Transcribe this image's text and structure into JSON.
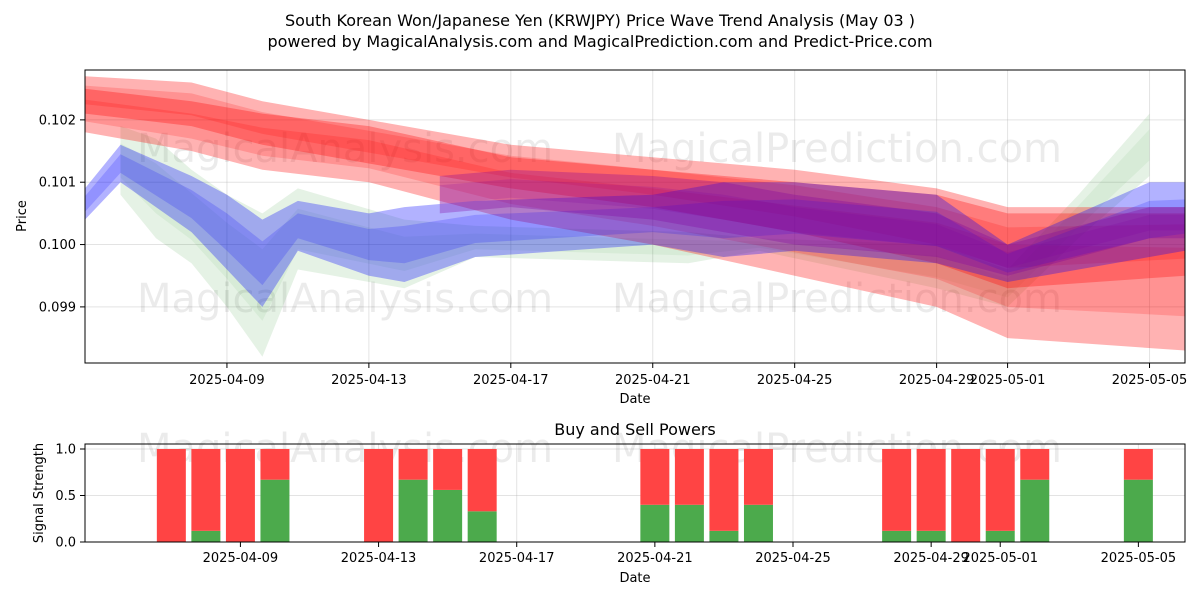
{
  "header": {
    "title_line1": "South Korean Won/Japanese Yen (KRWJPY) Price Wave Trend Analysis (May 03 )",
    "title_line2": "powered by MagicalAnalysis.com and MagicalPrediction.com and Predict-Price.com"
  },
  "watermarks": {
    "left": "MagicalAnalysis.com",
    "right": "MagicalPrediction.com"
  },
  "colors": {
    "red_band": "#ff0000",
    "blue_band": "#0000ff",
    "green_band": "#008000",
    "purple_band": "#8000a0",
    "buy": "#4caa4c",
    "sell": "#ff4444"
  },
  "chart_data": [
    {
      "type": "area",
      "title": "",
      "xlabel": "Date",
      "ylabel": "Price",
      "x_ticks": [
        "2025-04-09",
        "2025-04-13",
        "2025-04-17",
        "2025-04-21",
        "2025-04-25",
        "2025-04-29",
        "2025-05-01",
        "2025-05-05"
      ],
      "y_ticks": [
        "0.099",
        "0.100",
        "0.101",
        "0.102"
      ],
      "xlim": [
        "2025-04-05",
        "2025-05-06"
      ],
      "ylim": [
        0.0981,
        0.1028
      ],
      "grid": true,
      "series": [
        {
          "color": "red",
          "x": [
            "2025-04-05",
            "2025-04-08",
            "2025-04-10",
            "2025-04-13",
            "2025-04-17",
            "2025-04-21",
            "2025-04-25",
            "2025-04-29",
            "2025-05-01",
            "2025-05-06"
          ],
          "upper": [
            0.1025,
            0.1023,
            0.1021,
            0.1019,
            0.1014,
            0.1012,
            0.101,
            0.1008,
            0.1005,
            0.1005
          ],
          "lower": [
            0.1018,
            0.1015,
            0.1012,
            0.101,
            0.1004,
            0.1,
            0.0995,
            0.099,
            0.0985,
            0.0983
          ]
        },
        {
          "color": "red",
          "x": [
            "2025-04-05",
            "2025-04-08",
            "2025-04-10",
            "2025-04-13",
            "2025-04-17",
            "2025-04-21",
            "2025-04-25",
            "2025-04-29",
            "2025-05-01",
            "2025-05-06"
          ],
          "upper": [
            0.1027,
            0.1026,
            0.1023,
            0.102,
            0.1016,
            0.1014,
            0.1012,
            0.1009,
            0.1006,
            0.1006
          ],
          "lower": [
            0.1021,
            0.1019,
            0.1016,
            0.1013,
            0.1009,
            0.1006,
            0.1002,
            0.0997,
            0.0993,
            0.0995
          ]
        },
        {
          "color": "blue",
          "x": [
            "2025-04-05",
            "2025-04-06",
            "2025-04-08",
            "2025-04-09",
            "2025-04-10",
            "2025-04-11",
            "2025-04-13",
            "2025-04-14",
            "2025-04-16",
            "2025-04-21",
            "2025-04-23",
            "2025-04-25",
            "2025-04-29",
            "2025-05-01",
            "2025-05-05",
            "2025-05-06"
          ],
          "upper": [
            0.1009,
            0.1016,
            0.1011,
            0.1008,
            0.1004,
            0.1007,
            0.1005,
            0.1006,
            0.1007,
            0.1008,
            0.101,
            0.101,
            0.1008,
            0.1,
            0.101,
            0.101
          ],
          "lower": [
            0.1004,
            0.101,
            0.1002,
            0.0996,
            0.099,
            0.0999,
            0.0995,
            0.0994,
            0.0998,
            0.1,
            0.0998,
            0.0999,
            0.0997,
            0.0994,
            0.0998,
            0.0999
          ]
        },
        {
          "color": "green",
          "x": [
            "2025-04-06",
            "2025-04-07",
            "2025-04-08",
            "2025-04-09",
            "2025-04-10",
            "2025-04-11",
            "2025-04-14",
            "2025-04-16",
            "2025-04-22",
            "2025-04-24",
            "2025-04-29",
            "2025-05-01",
            "2025-05-03",
            "2025-05-05"
          ],
          "upper": [
            0.1019,
            0.1017,
            0.1012,
            0.1008,
            0.1005,
            0.1009,
            0.1004,
            0.1003,
            0.1002,
            0.1001,
            0.1,
            0.0996,
            0.1008,
            0.1021
          ],
          "lower": [
            0.1008,
            0.1001,
            0.0997,
            0.099,
            0.0982,
            0.0996,
            0.0993,
            0.0998,
            0.0997,
            0.0999,
            0.0993,
            0.099,
            0.1001,
            0.1011
          ]
        },
        {
          "color": "purple",
          "x": [
            "2025-04-15",
            "2025-04-17",
            "2025-04-21",
            "2025-04-23",
            "2025-04-25",
            "2025-04-29",
            "2025-05-01",
            "2025-05-05",
            "2025-05-06"
          ],
          "upper": [
            0.1011,
            0.1012,
            0.1011,
            0.101,
            0.1008,
            0.1005,
            0.1,
            0.1006,
            0.1006
          ],
          "lower": [
            0.1005,
            0.1006,
            0.1004,
            0.1002,
            0.1,
            0.0998,
            0.0995,
            0.1001,
            0.1001
          ]
        }
      ]
    },
    {
      "type": "bar",
      "title": "Buy and Sell Powers",
      "xlabel": "Date",
      "ylabel": "Signal Strength",
      "x_ticks": [
        "2025-04-09",
        "2025-04-13",
        "2025-04-17",
        "2025-04-21",
        "2025-04-25",
        "2025-04-29",
        "2025-05-01",
        "2025-05-05"
      ],
      "y_ticks": [
        "0.0",
        "0.5",
        "1.0"
      ],
      "ylim": [
        0,
        1.05
      ],
      "grid": true,
      "categories": [
        "2025-04-07",
        "2025-04-08",
        "2025-04-09",
        "2025-04-10",
        "2025-04-13",
        "2025-04-14",
        "2025-04-15",
        "2025-04-16",
        "2025-04-21",
        "2025-04-22",
        "2025-04-23",
        "2025-04-24",
        "2025-04-28",
        "2025-04-29",
        "2025-04-30",
        "2025-05-01",
        "2025-05-02",
        "2025-05-05"
      ],
      "series": [
        {
          "name": "buy",
          "values": [
            0.0,
            0.12,
            0.0,
            0.67,
            0.0,
            0.67,
            0.56,
            0.33,
            0.4,
            0.4,
            0.12,
            0.4,
            0.12,
            0.12,
            0.0,
            0.12,
            0.67,
            0.67
          ]
        },
        {
          "name": "sell",
          "values": [
            1.0,
            0.88,
            1.0,
            0.33,
            1.0,
            0.33,
            0.44,
            0.67,
            0.6,
            0.6,
            0.88,
            0.6,
            0.88,
            0.88,
            1.0,
            0.88,
            0.33,
            0.33
          ]
        }
      ]
    }
  ]
}
